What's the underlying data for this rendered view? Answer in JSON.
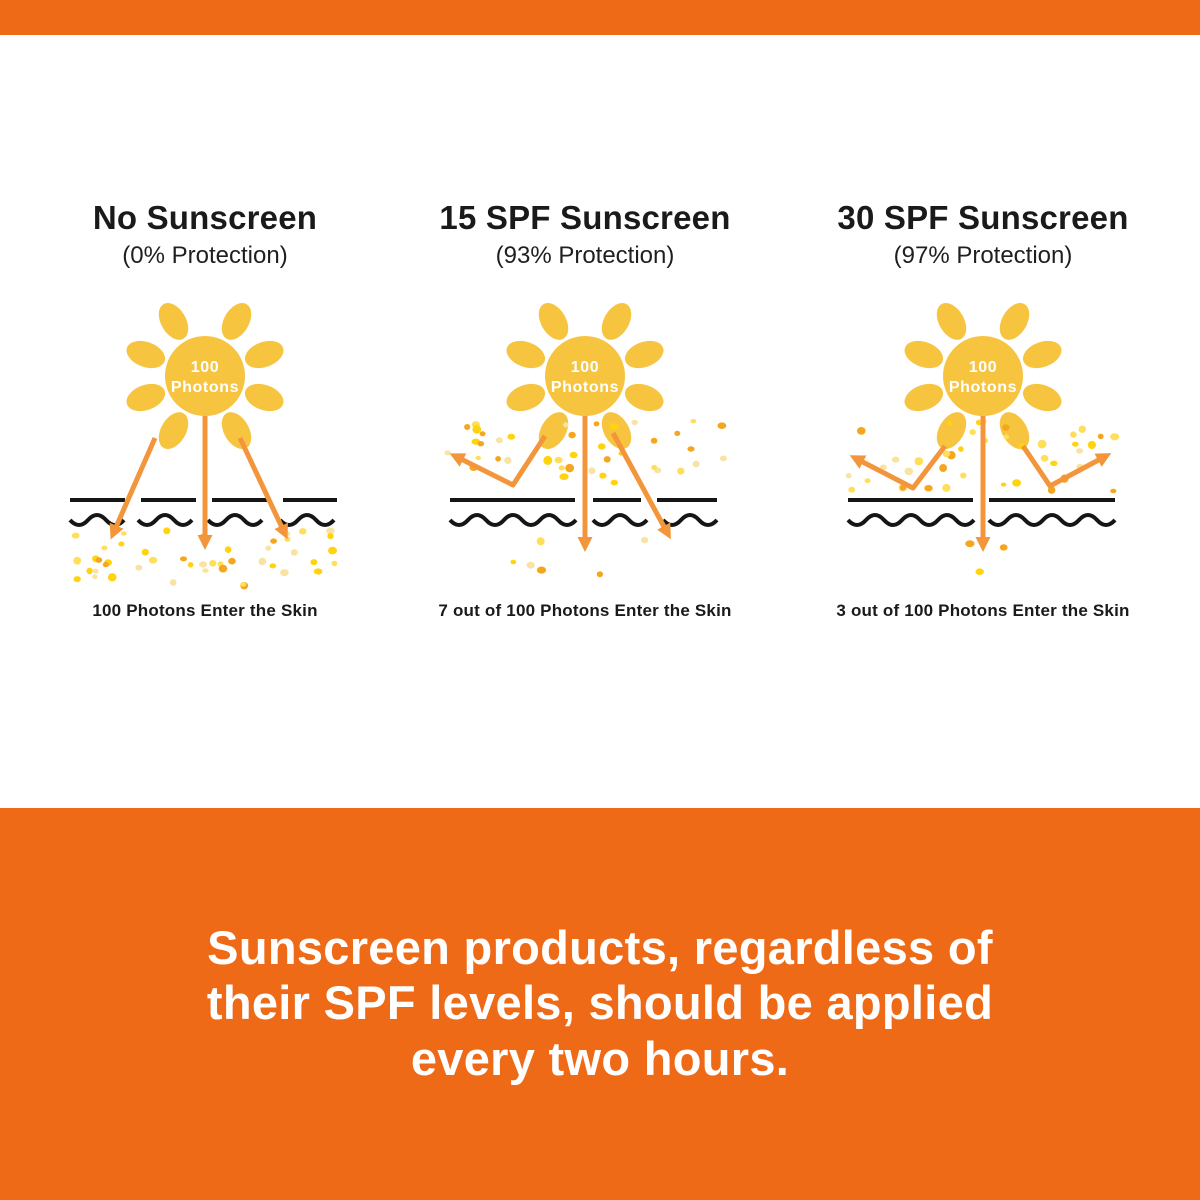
{
  "page": {
    "accent_orange": "#ee6a17",
    "background": "#ffffff"
  },
  "sun": {
    "label_line1": "100",
    "label_line2": "Photons"
  },
  "colors": {
    "sun_yellow": "#f7c440",
    "ray_orange": "#f3953b",
    "skin_line": "#161616",
    "text_dark": "#1a1a1a",
    "banner_text": "#ffffff",
    "dot_palette": [
      "#f5a61d",
      "#ffd30e",
      "#f9e3a4",
      "#ffde59"
    ]
  },
  "panels": [
    {
      "title": "No Sunscreen",
      "subtitle": "(0% Protection)",
      "caption": "100 Photons Enter the Skin"
    },
    {
      "title": "15 SPF Sunscreen",
      "subtitle": "(93% Protection)",
      "caption": "7 out of 100 Photons Enter the Skin"
    },
    {
      "title": "30 SPF Sunscreen",
      "subtitle": "(97% Protection)",
      "caption": "3 out of 100 Photons Enter the Skin"
    }
  ],
  "banner": {
    "lines": [
      "Sunscreen products, regardless of",
      "their SPF levels, should be applied",
      "every two hours."
    ]
  }
}
